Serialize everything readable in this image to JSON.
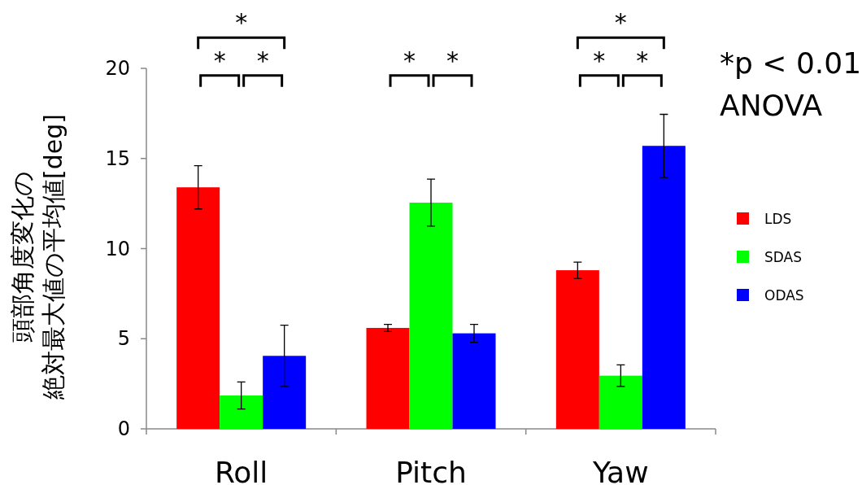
{
  "chart_data": {
    "type": "bar",
    "ylabel": [
      "頭部角度変化の",
      "絶対最大値の平均値[deg]"
    ],
    "categories": [
      "Roll",
      "Pitch",
      "Yaw"
    ],
    "series": [
      {
        "name": "LDS",
        "color": "#ff0000",
        "values": [
          13.4,
          5.6,
          8.8
        ],
        "errors": [
          1.2,
          0.2,
          0.45
        ]
      },
      {
        "name": "SDAS",
        "color": "#00ff00",
        "values": [
          1.85,
          12.55,
          2.95
        ],
        "errors": [
          0.75,
          1.3,
          0.6
        ]
      },
      {
        "name": "ODAS",
        "color": "#0000ff",
        "values": [
          4.05,
          5.3,
          15.7
        ],
        "errors": [
          1.7,
          0.5,
          1.75
        ]
      }
    ],
    "ylim": [
      0,
      20
    ],
    "yticks": [
      0,
      5,
      10,
      15,
      20
    ],
    "grid": false,
    "legend": "right",
    "annotations": [
      "*",
      "*",
      "*",
      "*",
      "*",
      "*",
      "*",
      "*",
      "*p < 0.01",
      "ANOVA"
    ]
  }
}
